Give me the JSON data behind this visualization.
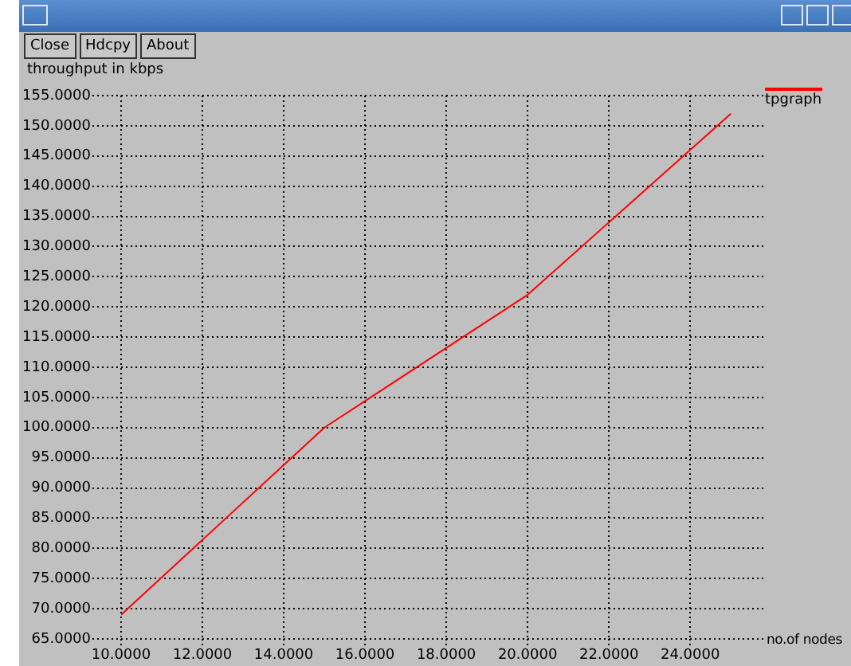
{
  "chart_data": {
    "type": "line",
    "xlabel": "no.of nodes",
    "ylabel": "throughput in kbps",
    "annotations": [
      "Close",
      "Hdcpy",
      "About"
    ],
    "x": [
      10,
      15,
      20,
      25
    ],
    "series": [
      {
        "name": "tpgraph",
        "color": "#ff0000",
        "values": [
          69,
          100,
          122,
          152
        ]
      }
    ],
    "xlim": [
      10,
      25.8
    ],
    "xticks": [
      {
        "value": 10,
        "label": "10.0000"
      },
      {
        "value": 12,
        "label": "12.0000"
      },
      {
        "value": 14,
        "label": "14.0000"
      },
      {
        "value": 16,
        "label": "16.0000"
      },
      {
        "value": 18,
        "label": "18.0000"
      },
      {
        "value": 20,
        "label": "20.0000"
      },
      {
        "value": 22,
        "label": "22.0000"
      },
      {
        "value": 24,
        "label": "24.0000"
      }
    ],
    "ylim": [
      65,
      155
    ],
    "yticks": [
      {
        "value": 65,
        "label": "65.0000"
      },
      {
        "value": 70,
        "label": "70.0000"
      },
      {
        "value": 75,
        "label": "75.0000"
      },
      {
        "value": 80,
        "label": "80.0000"
      },
      {
        "value": 85,
        "label": "85.0000"
      },
      {
        "value": 90,
        "label": "90.0000"
      },
      {
        "value": 95,
        "label": "95.0000"
      },
      {
        "value": 100,
        "label": "100.0000"
      },
      {
        "value": 105,
        "label": "105.0000"
      },
      {
        "value": 110,
        "label": "110.0000"
      },
      {
        "value": 115,
        "label": "115.0000"
      },
      {
        "value": 120,
        "label": "120.0000"
      },
      {
        "value": 125,
        "label": "125.0000"
      },
      {
        "value": 130,
        "label": "130.0000"
      },
      {
        "value": 135,
        "label": "135.0000"
      },
      {
        "value": 140,
        "label": "140.0000"
      },
      {
        "value": 145,
        "label": "145.0000"
      },
      {
        "value": 150,
        "label": "150.0000"
      },
      {
        "value": 155,
        "label": "155.0000"
      }
    ],
    "grid": true,
    "legend": "top right",
    "marker": "none",
    "line_style": "solid"
  }
}
